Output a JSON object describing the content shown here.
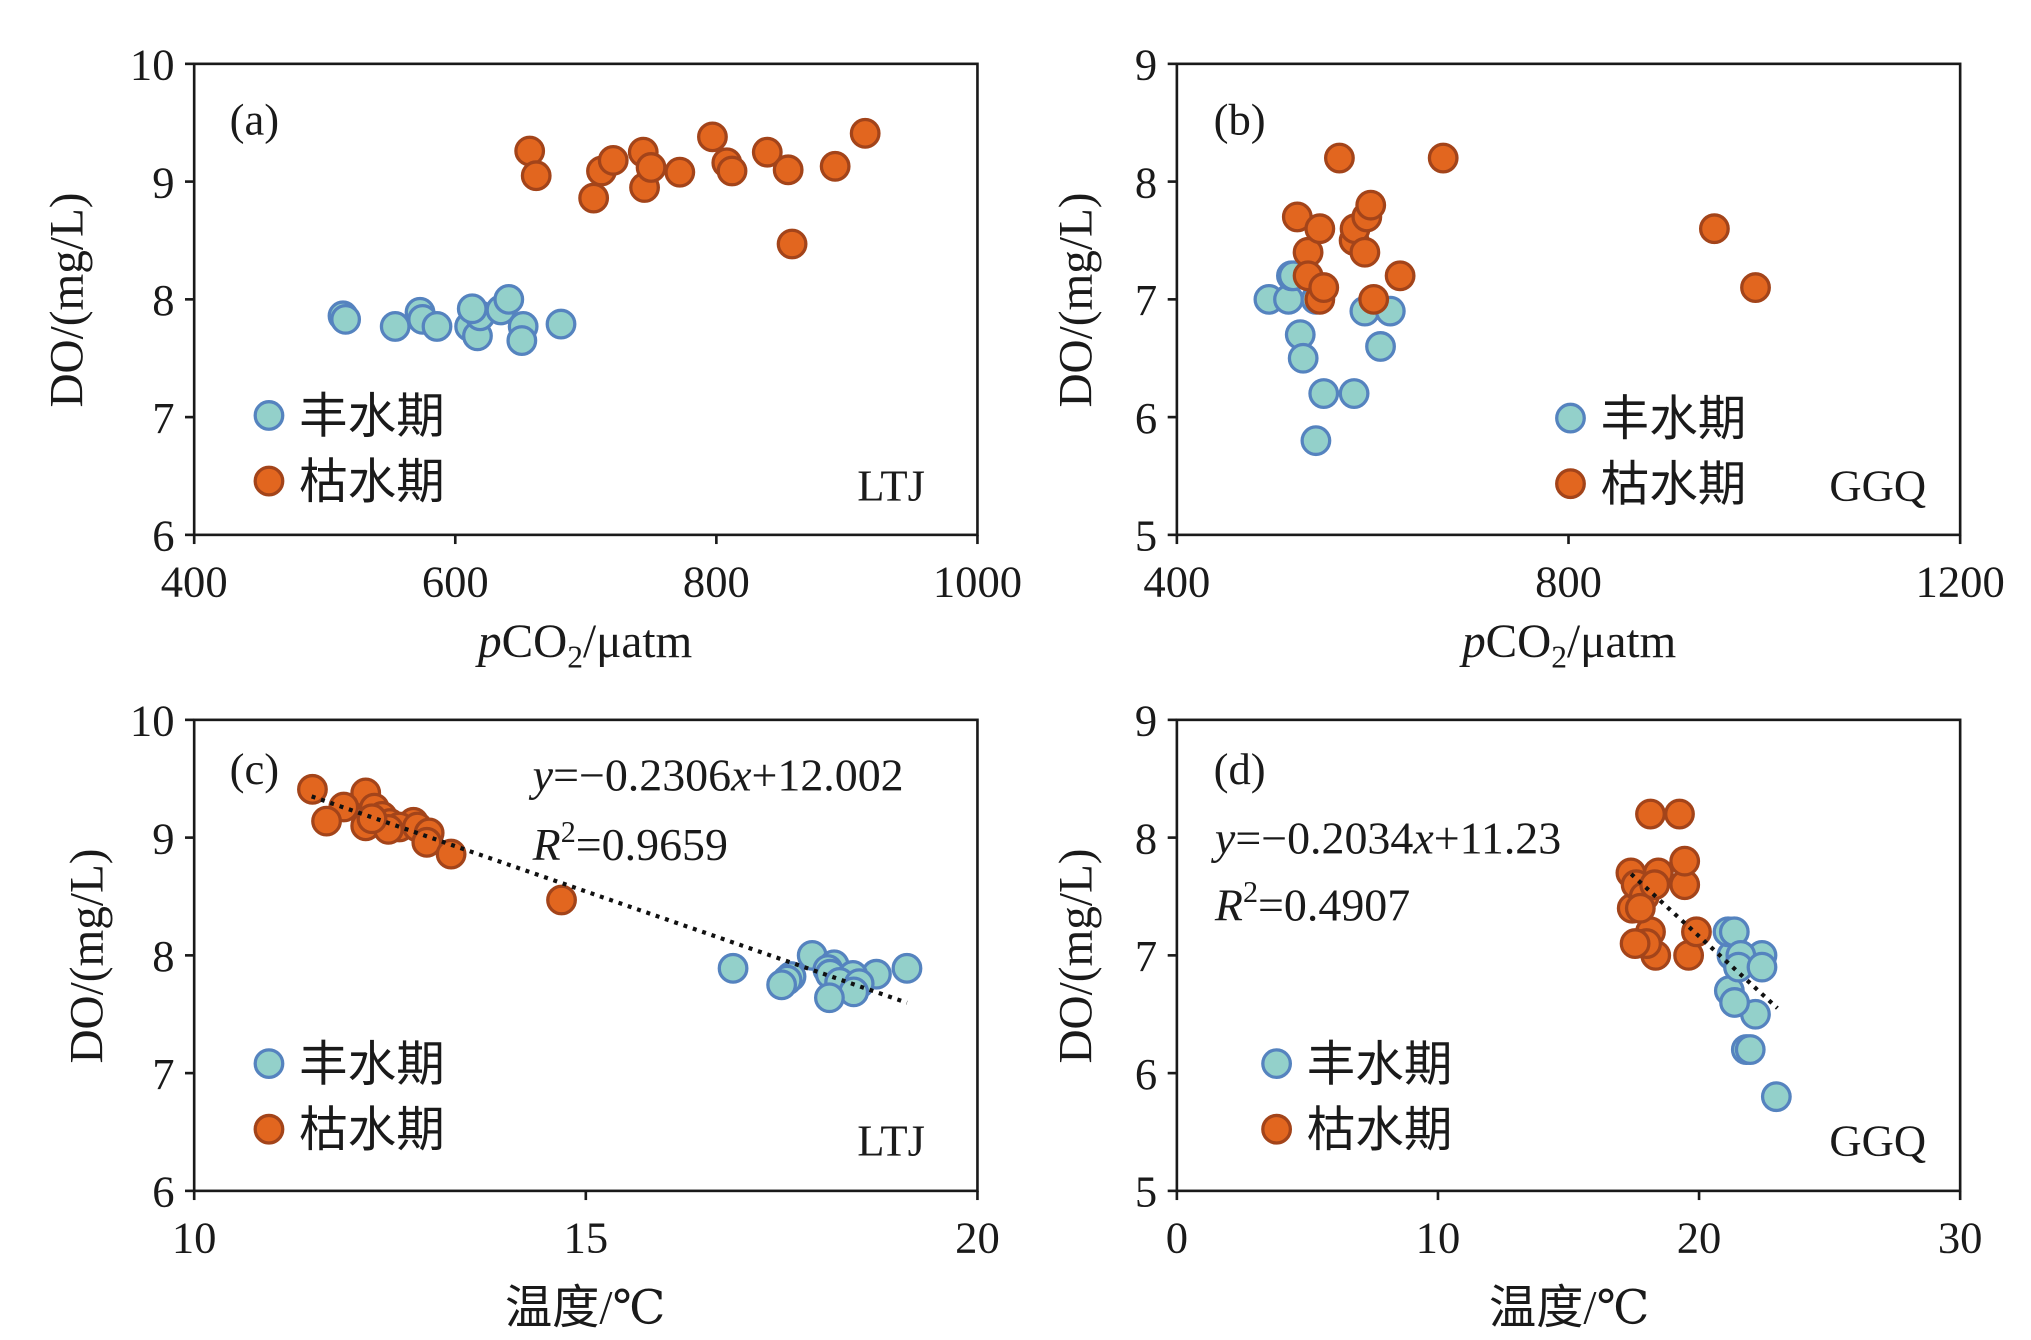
{
  "chart_data": [
    {
      "panel_label": "(a)",
      "type": "scatter",
      "site": "LTJ",
      "xlabel": {
        "italic": "p",
        "text": "CO",
        "subscript": "2",
        "suffix": "/μatm"
      },
      "ylabel": "DO/(mg/L)",
      "xlim": [
        400,
        1000
      ],
      "ylim": [
        6,
        10
      ],
      "xticks": [
        400,
        600,
        800,
        1000
      ],
      "yticks": [
        6,
        7,
        8,
        9,
        10
      ],
      "series": [
        {
          "name": "丰水期",
          "color": "#93D0CA",
          "edge": "#5583BF",
          "x": [
            514,
            516,
            554,
            573,
            575,
            586,
            611,
            617,
            619,
            613,
            635,
            641,
            652,
            651,
            681
          ],
          "y": [
            7.86,
            7.83,
            7.77,
            7.89,
            7.83,
            7.77,
            7.77,
            7.69,
            7.86,
            7.92,
            7.91,
            8.0,
            7.77,
            7.65,
            7.79
          ]
        },
        {
          "name": "枯水期",
          "color": "#E2661F",
          "edge": "#A3441A",
          "x": [
            657,
            662,
            706,
            712,
            721,
            744,
            745,
            750,
            772,
            797,
            808,
            812,
            839,
            855,
            858,
            891,
            914
          ],
          "y": [
            9.26,
            9.05,
            8.86,
            9.09,
            9.18,
            9.25,
            8.95,
            9.12,
            9.08,
            9.38,
            9.16,
            9.09,
            9.25,
            9.1,
            8.47,
            9.13,
            9.41
          ]
        }
      ]
    },
    {
      "panel_label": "(b)",
      "type": "scatter",
      "site": "GGQ",
      "xlabel": {
        "italic": "p",
        "text": "CO",
        "subscript": "2",
        "suffix": "/μatm"
      },
      "ylabel": "DO/(mg/L)",
      "xlim": [
        400,
        1200
      ],
      "ylim": [
        5,
        9
      ],
      "xticks": [
        400,
        800,
        1200
      ],
      "yticks": [
        5,
        6,
        7,
        8,
        9
      ],
      "series": [
        {
          "name": "丰水期",
          "color": "#93D0CA",
          "edge": "#5583BF",
          "x": [
            494,
            514,
            517,
            519,
            526,
            529,
            542,
            550,
            542,
            581,
            592,
            608,
            618
          ],
          "y": [
            7.0,
            7.0,
            7.2,
            7.2,
            6.7,
            6.5,
            7.0,
            6.2,
            5.8,
            6.2,
            6.9,
            6.6,
            6.9
          ]
        },
        {
          "name": "枯水期",
          "color": "#E2661F",
          "edge": "#A3441A",
          "x": [
            523,
            534,
            534,
            546,
            546,
            550,
            566,
            581,
            582,
            592,
            594,
            598,
            601,
            628,
            672,
            949,
            991
          ],
          "y": [
            7.7,
            7.4,
            7.2,
            7.6,
            7.0,
            7.1,
            8.2,
            7.5,
            7.6,
            7.4,
            7.7,
            7.8,
            7.0,
            7.2,
            8.2,
            7.6,
            7.1
          ]
        }
      ]
    },
    {
      "panel_label": "(c)",
      "type": "scatter",
      "site": "LTJ",
      "xlabel": "温度/℃",
      "ylabel": "DO/(mg/L)",
      "xlim": [
        10,
        20
      ],
      "ylim": [
        6,
        10
      ],
      "xticks": [
        10,
        15,
        20
      ],
      "yticks": [
        6,
        7,
        8,
        9,
        10
      ],
      "equation": {
        "y_var": "y",
        "coef": "=−0.2306",
        "x_var": "x",
        "const": "+12.002"
      },
      "r_squared": {
        "var": "R",
        "power": "2",
        "value": "=0.9659"
      },
      "trendline": {
        "slope": -0.2306,
        "intercept": 12.002,
        "x_range": [
          11.5,
          19.1
        ]
      },
      "series": [
        {
          "name": "丰水期",
          "color": "#93D0CA",
          "edge": "#5583BF",
          "x": [
            17.89,
            18.17,
            16.88,
            19.1,
            18.09,
            18.12,
            18.71,
            17.62,
            18.41,
            17.57,
            17.5,
            18.24,
            18.49,
            18.42,
            18.11
          ],
          "y": [
            8.0,
            7.92,
            7.89,
            7.89,
            7.88,
            7.84,
            7.84,
            7.82,
            7.83,
            7.79,
            7.75,
            7.77,
            7.76,
            7.69,
            7.64
          ]
        },
        {
          "name": "枯水期",
          "color": "#E2661F",
          "edge": "#A3441A",
          "x": [
            11.51,
            12.19,
            11.91,
            12.3,
            12.4,
            11.69,
            12.5,
            12.8,
            12.19,
            12.62,
            12.48,
            12.85,
            13.0,
            12.97,
            13.28,
            14.69,
            12.27
          ],
          "y": [
            9.41,
            9.38,
            9.26,
            9.25,
            9.18,
            9.14,
            9.12,
            9.13,
            9.1,
            9.09,
            9.07,
            9.09,
            9.04,
            8.96,
            8.86,
            8.47,
            9.16
          ]
        }
      ]
    },
    {
      "panel_label": "(d)",
      "type": "scatter",
      "site": "GGQ",
      "xlabel": "温度/℃",
      "ylabel": "DO/(mg/L)",
      "xlim": [
        0,
        30
      ],
      "ylim": [
        5,
        9
      ],
      "xticks": [
        0,
        10,
        20,
        30
      ],
      "yticks": [
        5,
        6,
        7,
        8,
        9
      ],
      "equation": {
        "y_var": "y",
        "coef": "=−0.2034",
        "x_var": "x",
        "const": "+11.23"
      },
      "r_squared": {
        "var": "R",
        "power": "2",
        "value": "=0.4907"
      },
      "trendline": {
        "slope": -0.2034,
        "intercept": 11.23,
        "x_range": [
          17.4,
          23.0
        ]
      },
      "series": [
        {
          "name": "丰水期",
          "color": "#93D0CA",
          "edge": "#5583BF",
          "x": [
            21.26,
            22.41,
            21.11,
            21.35,
            21.16,
            22.16,
            21.6,
            21.81,
            22.96,
            21.96,
            21.51,
            21.36,
            22.41
          ],
          "y": [
            7.0,
            7.0,
            7.2,
            7.2,
            6.7,
            6.5,
            7.0,
            6.2,
            5.8,
            6.2,
            6.9,
            6.6,
            6.9
          ]
        },
        {
          "name": "枯水期",
          "color": "#E2661F",
          "edge": "#A3441A",
          "x": [
            17.39,
            17.44,
            18.14,
            17.59,
            18.34,
            17.99,
            18.14,
            17.9,
            19.45,
            17.75,
            18.44,
            19.45,
            19.6,
            19.9,
            19.25,
            18.3,
            17.55
          ],
          "y": [
            7.7,
            7.4,
            7.2,
            7.6,
            7.0,
            7.1,
            8.2,
            7.5,
            7.6,
            7.4,
            7.7,
            7.8,
            7.0,
            7.2,
            8.2,
            7.6,
            7.1
          ]
        }
      ]
    }
  ]
}
